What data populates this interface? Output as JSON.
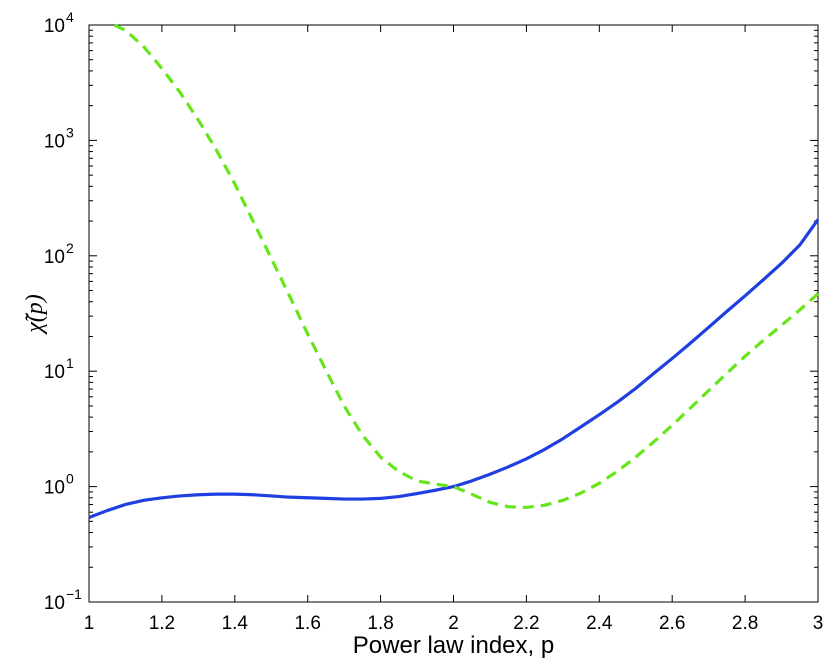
{
  "chart_data": {
    "type": "line",
    "xlabel": "Power law index, p",
    "ylabel": "χ̃(p)",
    "xlim": [
      1,
      3
    ],
    "ylim": [
      0.1,
      10000
    ],
    "yscale": "log",
    "grid": false,
    "x_ticks": [
      "1",
      "1.2",
      "1.4",
      "1.6",
      "1.8",
      "2",
      "2.2",
      "2.4",
      "2.6",
      "2.8",
      "3"
    ],
    "y_ticks": [
      {
        "base": "10",
        "exp": "−1"
      },
      {
        "base": "10",
        "exp": "0"
      },
      {
        "base": "10",
        "exp": "1"
      },
      {
        "base": "10",
        "exp": "2"
      },
      {
        "base": "10",
        "exp": "3"
      },
      {
        "base": "10",
        "exp": "4"
      }
    ],
    "series": [
      {
        "color": "#1f3fe0",
        "dash": "solid",
        "x": [
          1.0,
          1.05,
          1.1,
          1.15,
          1.2,
          1.25,
          1.3,
          1.35,
          1.4,
          1.45,
          1.5,
          1.55,
          1.6,
          1.65,
          1.7,
          1.75,
          1.8,
          1.85,
          1.9,
          1.95,
          2.0,
          2.05,
          2.1,
          2.15,
          2.2,
          2.25,
          2.3,
          2.35,
          2.4,
          2.45,
          2.5,
          2.55,
          2.6,
          2.65,
          2.7,
          2.75,
          2.8,
          2.85,
          2.9,
          2.95,
          3.0
        ],
        "y": [
          0.54,
          0.62,
          0.7,
          0.76,
          0.8,
          0.83,
          0.85,
          0.86,
          0.86,
          0.85,
          0.83,
          0.81,
          0.8,
          0.79,
          0.78,
          0.78,
          0.79,
          0.82,
          0.87,
          0.93,
          1.0,
          1.12,
          1.28,
          1.48,
          1.74,
          2.1,
          2.6,
          3.3,
          4.2,
          5.4,
          7.1,
          9.6,
          12.9,
          17.5,
          24,
          33,
          45,
          62,
          86,
          124,
          206
        ]
      },
      {
        "color": "#66e61a",
        "dash": "dashed",
        "x": [
          1.07,
          1.1,
          1.15,
          1.2,
          1.25,
          1.3,
          1.35,
          1.4,
          1.45,
          1.5,
          1.55,
          1.6,
          1.65,
          1.7,
          1.75,
          1.8,
          1.85,
          1.9,
          1.95,
          2.0,
          2.05,
          2.1,
          2.15,
          2.2,
          2.25,
          2.3,
          2.35,
          2.4,
          2.45,
          2.5,
          2.55,
          2.6,
          2.65,
          2.7,
          2.75,
          2.8,
          2.85,
          2.9,
          2.95,
          3.0
        ],
        "y": [
          10000,
          9000,
          6500,
          4200,
          2600,
          1500,
          820,
          420,
          200,
          95,
          45,
          21,
          10.2,
          5.0,
          2.8,
          1.8,
          1.35,
          1.12,
          1.05,
          1.0,
          0.86,
          0.73,
          0.67,
          0.66,
          0.69,
          0.76,
          0.88,
          1.07,
          1.36,
          1.8,
          2.45,
          3.4,
          4.8,
          6.8,
          9.6,
          13.5,
          18.5,
          25,
          34,
          47
        ]
      }
    ]
  }
}
